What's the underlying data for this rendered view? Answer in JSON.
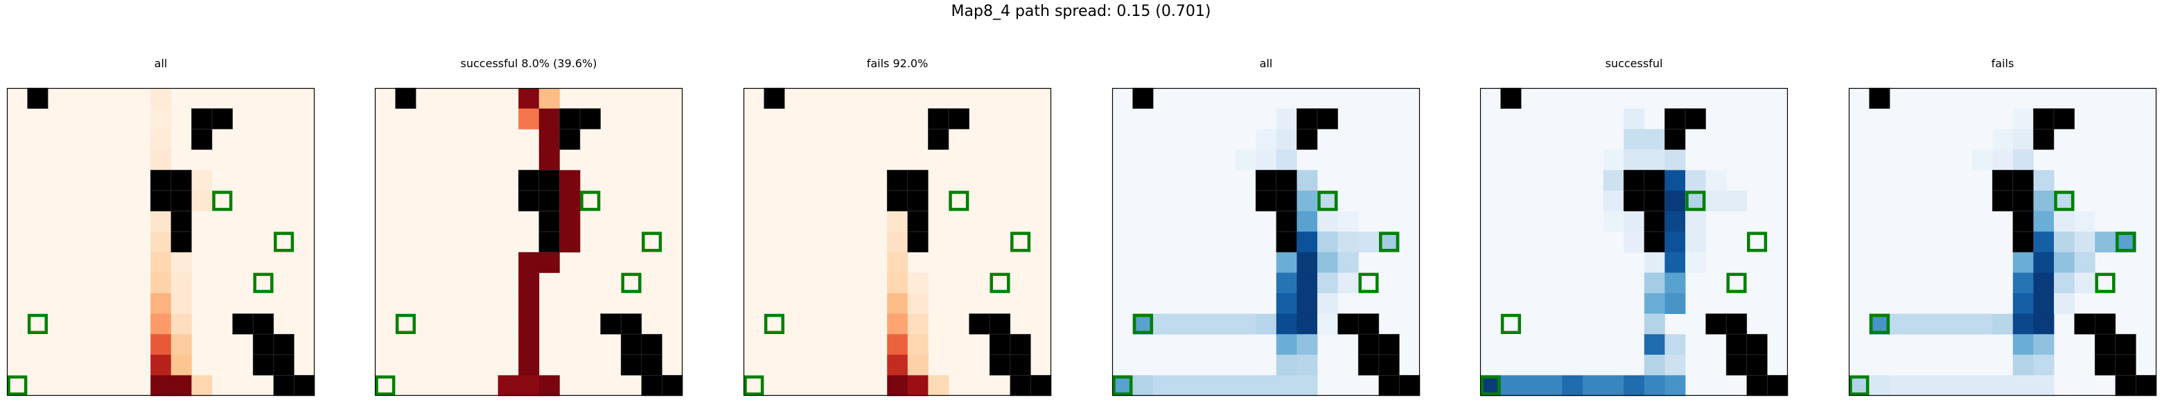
{
  "suptitle": "Map8_4 path spread: 0.15 (0.701)",
  "chart_data": {
    "type": "heatmap",
    "grid": {
      "rows": 15,
      "cols": 15
    },
    "walls": [
      [
        0,
        1
      ],
      [
        1,
        9
      ],
      [
        1,
        10
      ],
      [
        2,
        9
      ],
      [
        4,
        7
      ],
      [
        4,
        8
      ],
      [
        5,
        7
      ],
      [
        5,
        8
      ],
      [
        6,
        8
      ],
      [
        7,
        8
      ],
      [
        11,
        11
      ],
      [
        11,
        12
      ],
      [
        12,
        12
      ],
      [
        12,
        13
      ],
      [
        13,
        12
      ],
      [
        13,
        13
      ],
      [
        14,
        13
      ],
      [
        14,
        14
      ]
    ],
    "goals": [
      [
        5,
        10
      ],
      [
        7,
        13
      ],
      [
        9,
        12
      ],
      [
        11,
        1
      ],
      [
        14,
        0
      ]
    ],
    "panels": [
      {
        "title": "all",
        "cmap": "Reds",
        "cells": [
          [
            0,
            7,
            0.08
          ],
          [
            1,
            7,
            0.06
          ],
          [
            2,
            7,
            0.08
          ],
          [
            3,
            7,
            0.1
          ],
          [
            4,
            9,
            0.08
          ],
          [
            5,
            9,
            0.1
          ],
          [
            6,
            7,
            0.12
          ],
          [
            7,
            7,
            0.18
          ],
          [
            7,
            8,
            0.06
          ],
          [
            8,
            7,
            0.22
          ],
          [
            8,
            8,
            0.08
          ],
          [
            9,
            7,
            0.24
          ],
          [
            9,
            8,
            0.1
          ],
          [
            10,
            7,
            0.38
          ],
          [
            10,
            8,
            0.1
          ],
          [
            11,
            7,
            0.45
          ],
          [
            11,
            8,
            0.18
          ],
          [
            12,
            7,
            0.62
          ],
          [
            12,
            8,
            0.28
          ],
          [
            13,
            7,
            0.78
          ],
          [
            13,
            8,
            0.32
          ],
          [
            14,
            7,
            0.95
          ],
          [
            14,
            8,
            0.95
          ],
          [
            14,
            9,
            0.22
          ]
        ]
      },
      {
        "title": "successful 8.0% (39.6%)",
        "cmap": "Reds",
        "cells": [
          [
            0,
            7,
            0.92
          ],
          [
            0,
            8,
            0.35
          ],
          [
            1,
            7,
            0.55
          ],
          [
            1,
            8,
            0.95
          ],
          [
            2,
            8,
            0.95
          ],
          [
            3,
            8,
            0.95
          ],
          [
            4,
            9,
            0.95
          ],
          [
            5,
            9,
            0.95
          ],
          [
            6,
            9,
            0.95
          ],
          [
            7,
            8,
            0.95
          ],
          [
            7,
            9,
            0.95
          ],
          [
            8,
            7,
            0.95
          ],
          [
            8,
            8,
            0.95
          ],
          [
            9,
            7,
            0.95
          ],
          [
            10,
            7,
            0.95
          ],
          [
            11,
            7,
            0.95
          ],
          [
            12,
            7,
            0.95
          ],
          [
            13,
            7,
            0.95
          ],
          [
            14,
            6,
            0.9
          ],
          [
            14,
            7,
            0.9
          ],
          [
            14,
            8,
            0.95
          ]
        ]
      },
      {
        "title": "fails 92.0%",
        "cmap": "Reds",
        "cells": [
          [
            6,
            7,
            0.12
          ],
          [
            7,
            7,
            0.16
          ],
          [
            8,
            7,
            0.2
          ],
          [
            9,
            7,
            0.22
          ],
          [
            9,
            8,
            0.08
          ],
          [
            10,
            7,
            0.35
          ],
          [
            10,
            8,
            0.1
          ],
          [
            11,
            7,
            0.42
          ],
          [
            11,
            8,
            0.18
          ],
          [
            12,
            7,
            0.6
          ],
          [
            12,
            8,
            0.22
          ],
          [
            13,
            7,
            0.75
          ],
          [
            13,
            8,
            0.25
          ],
          [
            14,
            7,
            0.95
          ],
          [
            14,
            8,
            0.85
          ],
          [
            14,
            9,
            0.2
          ]
        ]
      },
      {
        "title": "all",
        "cmap": "Blues",
        "cells": [
          [
            1,
            8,
            0.08
          ],
          [
            2,
            7,
            0.06
          ],
          [
            2,
            8,
            0.12
          ],
          [
            3,
            6,
            0.05
          ],
          [
            3,
            7,
            0.08
          ],
          [
            3,
            8,
            0.18
          ],
          [
            4,
            9,
            0.3
          ],
          [
            5,
            9,
            0.45
          ],
          [
            5,
            10,
            0.25
          ],
          [
            6,
            9,
            0.55
          ],
          [
            6,
            10,
            0.1
          ],
          [
            6,
            11,
            0.06
          ],
          [
            7,
            8,
            0.25
          ],
          [
            7,
            9,
            0.85
          ],
          [
            7,
            10,
            0.3
          ],
          [
            7,
            11,
            0.2
          ],
          [
            7,
            12,
            0.18
          ],
          [
            7,
            13,
            0.35
          ],
          [
            8,
            8,
            0.5
          ],
          [
            8,
            9,
            0.95
          ],
          [
            8,
            10,
            0.4
          ],
          [
            8,
            11,
            0.25
          ],
          [
            9,
            8,
            0.72
          ],
          [
            9,
            9,
            0.95
          ],
          [
            9,
            10,
            0.25
          ],
          [
            9,
            11,
            0.1
          ],
          [
            10,
            8,
            0.8
          ],
          [
            10,
            9,
            0.95
          ],
          [
            10,
            10,
            0.1
          ],
          [
            11,
            1,
            0.55
          ],
          [
            11,
            2,
            0.25
          ],
          [
            11,
            3,
            0.25
          ],
          [
            11,
            4,
            0.25
          ],
          [
            11,
            5,
            0.25
          ],
          [
            11,
            6,
            0.25
          ],
          [
            11,
            7,
            0.28
          ],
          [
            11,
            8,
            0.88
          ],
          [
            11,
            9,
            0.95
          ],
          [
            11,
            10,
            0.05
          ],
          [
            12,
            8,
            0.5
          ],
          [
            12,
            9,
            0.4
          ],
          [
            13,
            8,
            0.3
          ],
          [
            13,
            9,
            0.28
          ],
          [
            14,
            0,
            0.55
          ],
          [
            14,
            1,
            0.3
          ],
          [
            14,
            2,
            0.25
          ],
          [
            14,
            3,
            0.25
          ],
          [
            14,
            4,
            0.25
          ],
          [
            14,
            5,
            0.25
          ],
          [
            14,
            6,
            0.25
          ],
          [
            14,
            7,
            0.25
          ],
          [
            14,
            8,
            0.25
          ],
          [
            14,
            9,
            0.25
          ]
        ]
      },
      {
        "title": "successful",
        "cmap": "Blues",
        "cells": [
          [
            1,
            7,
            0.1
          ],
          [
            2,
            7,
            0.22
          ],
          [
            2,
            8,
            0.22
          ],
          [
            3,
            6,
            0.05
          ],
          [
            3,
            7,
            0.15
          ],
          [
            3,
            8,
            0.15
          ],
          [
            3,
            9,
            0.2
          ],
          [
            4,
            6,
            0.2
          ],
          [
            4,
            7,
            0.55
          ],
          [
            4,
            8,
            0.45
          ],
          [
            4,
            9,
            0.85
          ],
          [
            4,
            10,
            0.2
          ],
          [
            4,
            11,
            0.05
          ],
          [
            5,
            6,
            0.1
          ],
          [
            5,
            9,
            0.95
          ],
          [
            5,
            10,
            0.3
          ],
          [
            5,
            11,
            0.1
          ],
          [
            5,
            12,
            0.1
          ],
          [
            6,
            6,
            0.05
          ],
          [
            6,
            7,
            0.1
          ],
          [
            6,
            9,
            0.9
          ],
          [
            6,
            10,
            0.1
          ],
          [
            7,
            7,
            0.08
          ],
          [
            7,
            8,
            0.08
          ],
          [
            7,
            9,
            0.85
          ],
          [
            7,
            10,
            0.1
          ],
          [
            8,
            8,
            0.1
          ],
          [
            8,
            9,
            0.8
          ],
          [
            8,
            10,
            0.05
          ],
          [
            9,
            8,
            0.35
          ],
          [
            9,
            9,
            0.55
          ],
          [
            10,
            8,
            0.5
          ],
          [
            10,
            9,
            0.6
          ],
          [
            11,
            8,
            0.3
          ],
          [
            12,
            8,
            0.75
          ],
          [
            12,
            9,
            0.25
          ],
          [
            13,
            8,
            0.3
          ],
          [
            13,
            9,
            0.2
          ],
          [
            14,
            0,
            0.95
          ],
          [
            14,
            1,
            0.65
          ],
          [
            14,
            2,
            0.65
          ],
          [
            14,
            3,
            0.65
          ],
          [
            14,
            4,
            0.75
          ],
          [
            14,
            5,
            0.65
          ],
          [
            14,
            6,
            0.65
          ],
          [
            14,
            7,
            0.75
          ],
          [
            14,
            8,
            0.65
          ],
          [
            14,
            9,
            0.6
          ]
        ]
      },
      {
        "title": "fails",
        "cmap": "Blues",
        "cells": [
          [
            1,
            8,
            0.05
          ],
          [
            2,
            7,
            0.05
          ],
          [
            2,
            8,
            0.1
          ],
          [
            3,
            6,
            0.05
          ],
          [
            3,
            7,
            0.08
          ],
          [
            3,
            8,
            0.18
          ],
          [
            4,
            9,
            0.25
          ],
          [
            5,
            9,
            0.42
          ],
          [
            5,
            10,
            0.25
          ],
          [
            6,
            9,
            0.5
          ],
          [
            6,
            10,
            0.1
          ],
          [
            6,
            11,
            0.06
          ],
          [
            7,
            8,
            0.25
          ],
          [
            7,
            9,
            0.8
          ],
          [
            7,
            10,
            0.28
          ],
          [
            7,
            11,
            0.18
          ],
          [
            7,
            12,
            0.42
          ],
          [
            7,
            13,
            0.55
          ],
          [
            8,
            8,
            0.5
          ],
          [
            8,
            9,
            0.9
          ],
          [
            8,
            10,
            0.4
          ],
          [
            8,
            11,
            0.25
          ],
          [
            9,
            8,
            0.72
          ],
          [
            9,
            9,
            0.95
          ],
          [
            9,
            10,
            0.25
          ],
          [
            9,
            11,
            0.1
          ],
          [
            10,
            8,
            0.8
          ],
          [
            10,
            9,
            0.95
          ],
          [
            10,
            10,
            0.1
          ],
          [
            11,
            1,
            0.6
          ],
          [
            11,
            2,
            0.25
          ],
          [
            11,
            3,
            0.25
          ],
          [
            11,
            4,
            0.25
          ],
          [
            11,
            5,
            0.25
          ],
          [
            11,
            6,
            0.25
          ],
          [
            11,
            7,
            0.28
          ],
          [
            11,
            8,
            0.9
          ],
          [
            11,
            9,
            0.95
          ],
          [
            12,
            8,
            0.5
          ],
          [
            12,
            9,
            0.4
          ],
          [
            13,
            8,
            0.3
          ],
          [
            13,
            9,
            0.25
          ],
          [
            14,
            0,
            0.3
          ],
          [
            14,
            1,
            0.15
          ],
          [
            14,
            2,
            0.12
          ],
          [
            14,
            3,
            0.12
          ],
          [
            14,
            4,
            0.12
          ],
          [
            14,
            5,
            0.12
          ],
          [
            14,
            6,
            0.12
          ],
          [
            14,
            7,
            0.12
          ],
          [
            14,
            8,
            0.12
          ],
          [
            14,
            9,
            0.12
          ]
        ]
      }
    ]
  }
}
